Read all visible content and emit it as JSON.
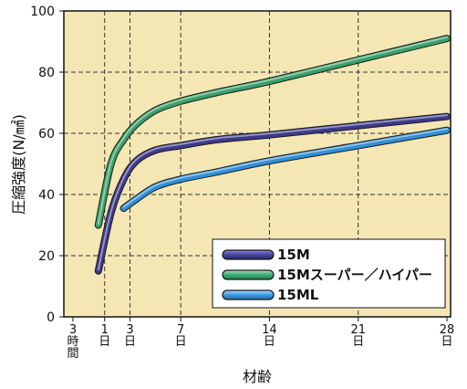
{
  "chart_data": {
    "type": "line",
    "ylabel": "圧縮強度(N/㎟)",
    "xlabel": "材齢",
    "xlim": [
      -1.5,
      28
    ],
    "ylim": [
      0,
      100
    ],
    "yticks": [
      "0",
      "20",
      "40",
      "60",
      "80",
      "100"
    ],
    "ytick_values": [
      0,
      20,
      40,
      60,
      80,
      100
    ],
    "xticks": [
      {
        "value": -1.5,
        "lines": [
          "3",
          "時",
          "間"
        ]
      },
      {
        "value": 1,
        "lines": [
          "1",
          "日"
        ]
      },
      {
        "value": 3,
        "lines": [
          "3",
          "日"
        ]
      },
      {
        "value": 7,
        "lines": [
          "7",
          "日"
        ]
      },
      {
        "value": 14,
        "lines": [
          "14",
          "日"
        ]
      },
      {
        "value": 21,
        "lines": [
          "21",
          "日"
        ]
      },
      {
        "value": 28,
        "lines": [
          "28",
          "日"
        ]
      }
    ],
    "grid": true,
    "legend_position": "bottom-right",
    "series": [
      {
        "name": "15M",
        "color": "#3d3a8c",
        "x": [
          0.5,
          1.5,
          2.5,
          3.5,
          5,
          7,
          10,
          14,
          21,
          28
        ],
        "y": [
          15,
          34,
          45,
          51,
          54.5,
          56,
          58,
          59.5,
          62.5,
          65.5
        ]
      },
      {
        "name": "15Mスーパー／ハイパー",
        "color": "#3aa06a",
        "x": [
          0.5,
          1.5,
          2.5,
          3.5,
          5,
          7,
          10,
          14,
          21,
          28
        ],
        "y": [
          30,
          50,
          58,
          63,
          67.5,
          70.5,
          73.5,
          77,
          84,
          91
        ]
      },
      {
        "name": "15ML",
        "color": "#2f8fd6",
        "x": [
          2.5,
          3.5,
          5,
          7,
          10,
          14,
          21,
          28
        ],
        "y": [
          35.5,
          38.5,
          42.5,
          45,
          47.5,
          51,
          56,
          61
        ]
      }
    ]
  }
}
